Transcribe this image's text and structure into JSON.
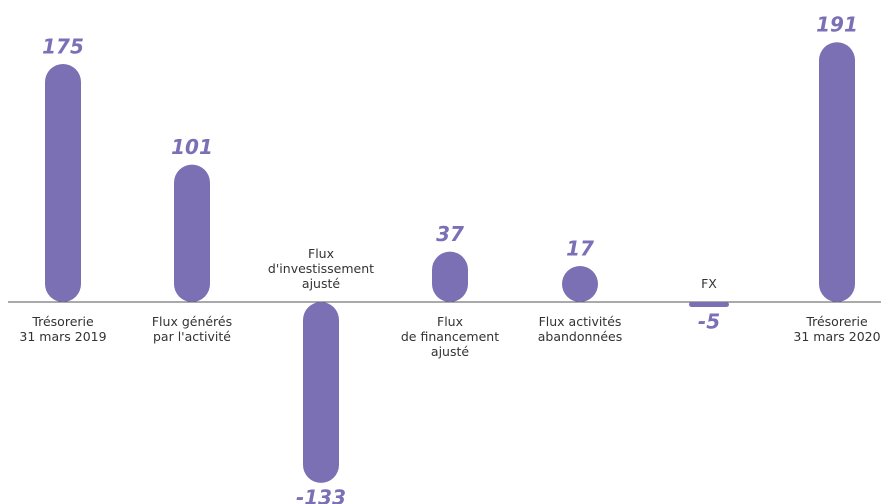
{
  "chart_data": {
    "type": "bar",
    "categories": [
      "Trésorerie\n31 mars 2019",
      "Flux générés\npar l'activité",
      "Flux\nd'investissement\najusté",
      "Flux\nde financement\najusté",
      "Flux activités\nabandonnées",
      "FX",
      "Trésorerie\n31 mars 2020"
    ],
    "values": [
      175,
      101,
      -133,
      37,
      17,
      -5,
      191
    ],
    "color": "#7a70b3",
    "label_color": "#7b6fb6"
  }
}
